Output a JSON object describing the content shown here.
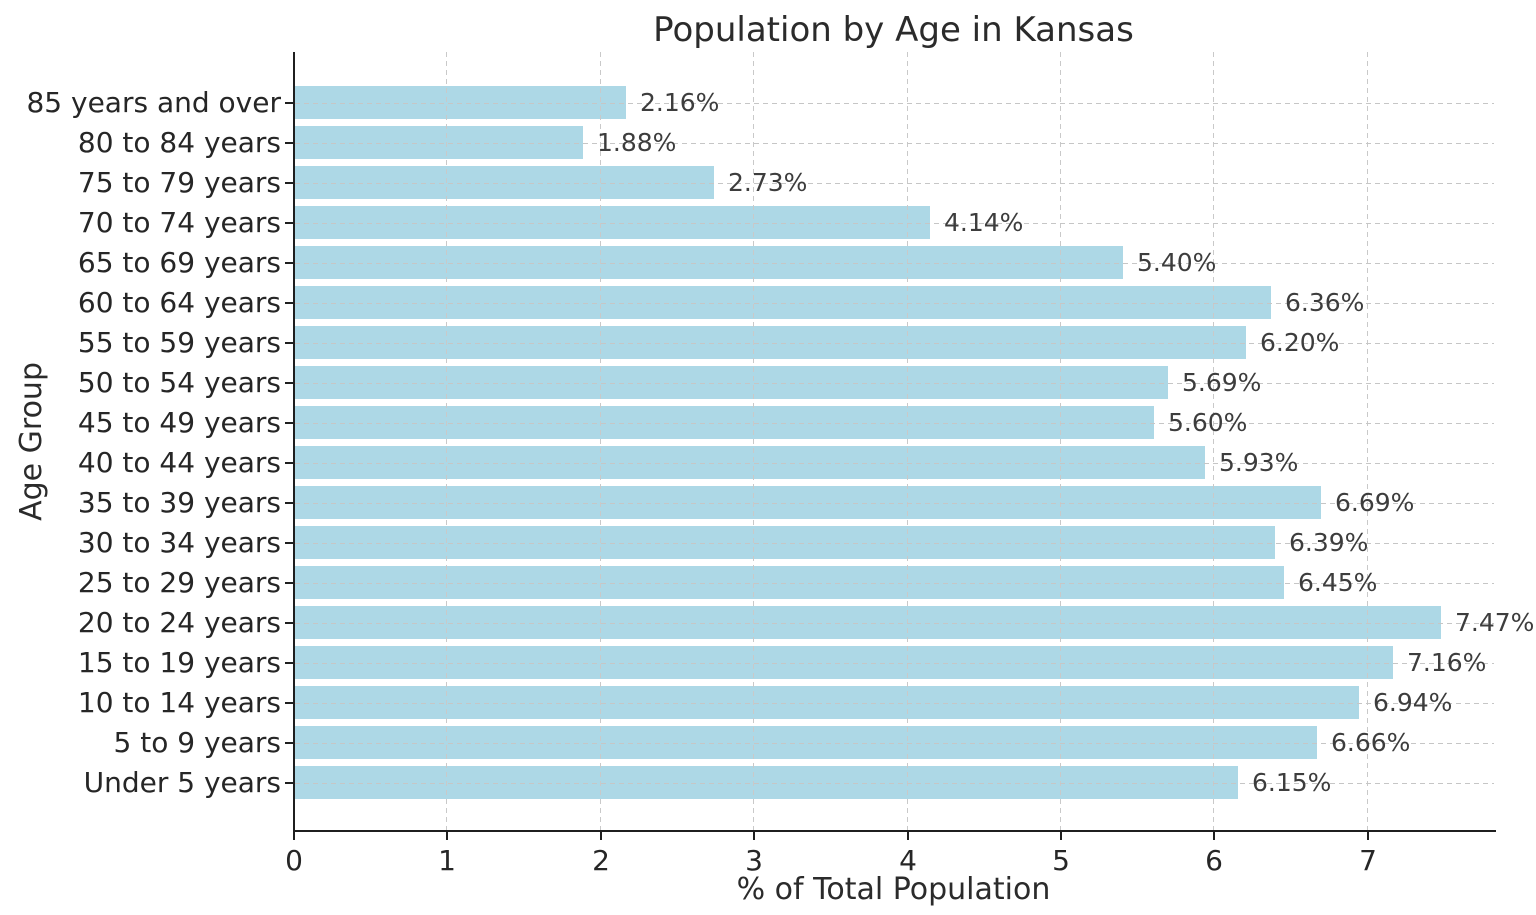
{
  "figure": {
    "background": "#ffffff"
  },
  "chart_data": {
    "type": "bar",
    "orientation": "horizontal",
    "title": "Population by Age in Kansas",
    "xlabel": "% of Total Population",
    "ylabel": "Age Group",
    "categories": [
      "85 years and over",
      "80 to 84 years",
      "75 to 79 years",
      "70 to 74 years",
      "65 to 69 years",
      "60 to 64 years",
      "55 to 59 years",
      "50 to 54 years",
      "45 to 49 years",
      "40 to 44 years",
      "35 to 39 years",
      "30 to 34 years",
      "25 to 29 years",
      "20 to 24 years",
      "15 to 19 years",
      "10 to 14 years",
      "5 to 9 years",
      "Under 5 years"
    ],
    "values": [
      2.16,
      1.88,
      2.73,
      4.14,
      5.4,
      6.36,
      6.2,
      5.69,
      5.6,
      5.93,
      6.69,
      6.39,
      6.45,
      7.47,
      7.16,
      6.94,
      6.66,
      6.15
    ],
    "value_labels": [
      "2.16%",
      "1.88%",
      "2.73%",
      "4.14%",
      "5.40%",
      "6.36%",
      "6.20%",
      "5.69%",
      "5.60%",
      "5.93%",
      "6.69%",
      "6.39%",
      "6.45%",
      "7.47%",
      "7.16%",
      "6.94%",
      "6.66%",
      "6.15%"
    ],
    "xlim": [
      0,
      7.83
    ],
    "xticks": [
      0,
      1,
      2,
      3,
      4,
      5,
      6,
      7
    ],
    "xtick_labels": [
      "0",
      "1",
      "2",
      "3",
      "4",
      "5",
      "6",
      "7"
    ],
    "grid": true,
    "grid_style": "dashed",
    "legend": false,
    "bar_color": "#ADD8E6",
    "grid_color": "#c9c9c9",
    "axis_color": "#1f1f1f",
    "text_color": "#262626",
    "value_label_color": "#3d3d3d"
  }
}
